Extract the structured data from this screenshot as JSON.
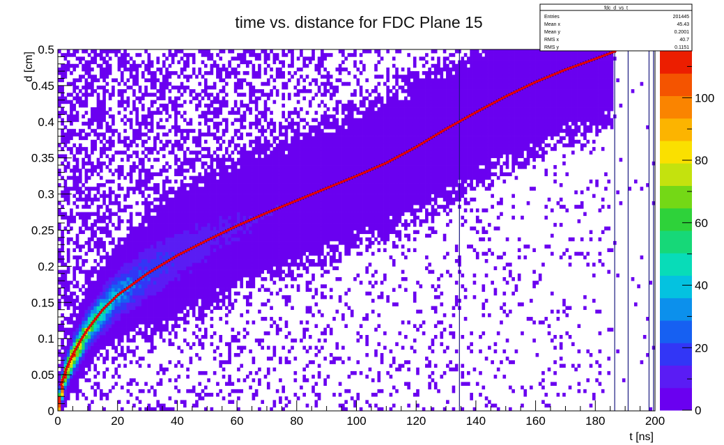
{
  "chart_data": {
    "type": "heatmap",
    "title": "time vs. distance for FDC Plane 15",
    "xlabel": "t [ns]",
    "ylabel": "d [cm]",
    "xlim": [
      0,
      200
    ],
    "ylim": [
      0,
      0.5
    ],
    "x_ticks": [
      "0",
      "20",
      "40",
      "60",
      "80",
      "100",
      "120",
      "140",
      "160",
      "180",
      "200"
    ],
    "y_ticks": [
      "0",
      "0.05",
      "0.1",
      "0.15",
      "0.2",
      "0.25",
      "0.3",
      "0.35",
      "0.4",
      "0.45",
      "0.5"
    ],
    "z_range": [
      0,
      115
    ],
    "z_ticks": [
      "0",
      "20",
      "40",
      "60",
      "80",
      "100"
    ],
    "palette": [
      "#6a00f0",
      "#5a1cf4",
      "#3236f6",
      "#1660f2",
      "#0c90ec",
      "#04c2e0",
      "#08dcb8",
      "#16d878",
      "#2ed23a",
      "#74d816",
      "#c4e20e",
      "#fae000",
      "#fcb400",
      "#fa8400",
      "#f45400",
      "#ec1e00"
    ],
    "ridge_function": {
      "description": "density ridge (approx.)",
      "points": [
        [
          0,
          0.0
        ],
        [
          2,
          0.045
        ],
        [
          5,
          0.075
        ],
        [
          10,
          0.112
        ],
        [
          15,
          0.138
        ],
        [
          20,
          0.16
        ],
        [
          30,
          0.19
        ],
        [
          40,
          0.214
        ],
        [
          50,
          0.235
        ],
        [
          60,
          0.255
        ],
        [
          70,
          0.273
        ],
        [
          80,
          0.29
        ],
        [
          90,
          0.307
        ],
        [
          100,
          0.323
        ],
        [
          110,
          0.34
        ],
        [
          120,
          0.36
        ],
        [
          130,
          0.385
        ],
        [
          140,
          0.41
        ],
        [
          150,
          0.435
        ],
        [
          160,
          0.455
        ],
        [
          170,
          0.472
        ],
        [
          185,
          0.495
        ]
      ]
    },
    "fit_line": {
      "color": "#e60000",
      "points": [
        [
          1,
          0.035
        ],
        [
          3,
          0.06
        ],
        [
          5,
          0.078
        ],
        [
          8,
          0.1
        ],
        [
          10,
          0.113
        ],
        [
          15,
          0.14
        ],
        [
          20,
          0.16
        ],
        [
          25,
          0.175
        ],
        [
          30,
          0.19
        ],
        [
          40,
          0.215
        ],
        [
          50,
          0.236
        ],
        [
          60,
          0.256
        ],
        [
          70,
          0.274
        ],
        [
          80,
          0.291
        ],
        [
          90,
          0.308
        ],
        [
          100,
          0.325
        ],
        [
          110,
          0.343
        ],
        [
          120,
          0.365
        ],
        [
          130,
          0.39
        ],
        [
          140,
          0.413
        ],
        [
          150,
          0.435
        ],
        [
          160,
          0.455
        ],
        [
          170,
          0.472
        ],
        [
          180,
          0.487
        ],
        [
          187,
          0.498
        ]
      ]
    },
    "vertical_lines": [
      134.5,
      186.5,
      191,
      198,
      199.5
    ],
    "stats_box": {
      "name": "fdc_d_vs_t",
      "rows": [
        {
          "label": "Entries",
          "value": "201445"
        },
        {
          "label": "Mean x",
          "value": "45.43"
        },
        {
          "label": "Mean y",
          "value": "0.2001"
        },
        {
          "label": "RMS x",
          "value": "40.7"
        },
        {
          "label": "RMS y",
          "value": "0.1151"
        }
      ]
    }
  }
}
